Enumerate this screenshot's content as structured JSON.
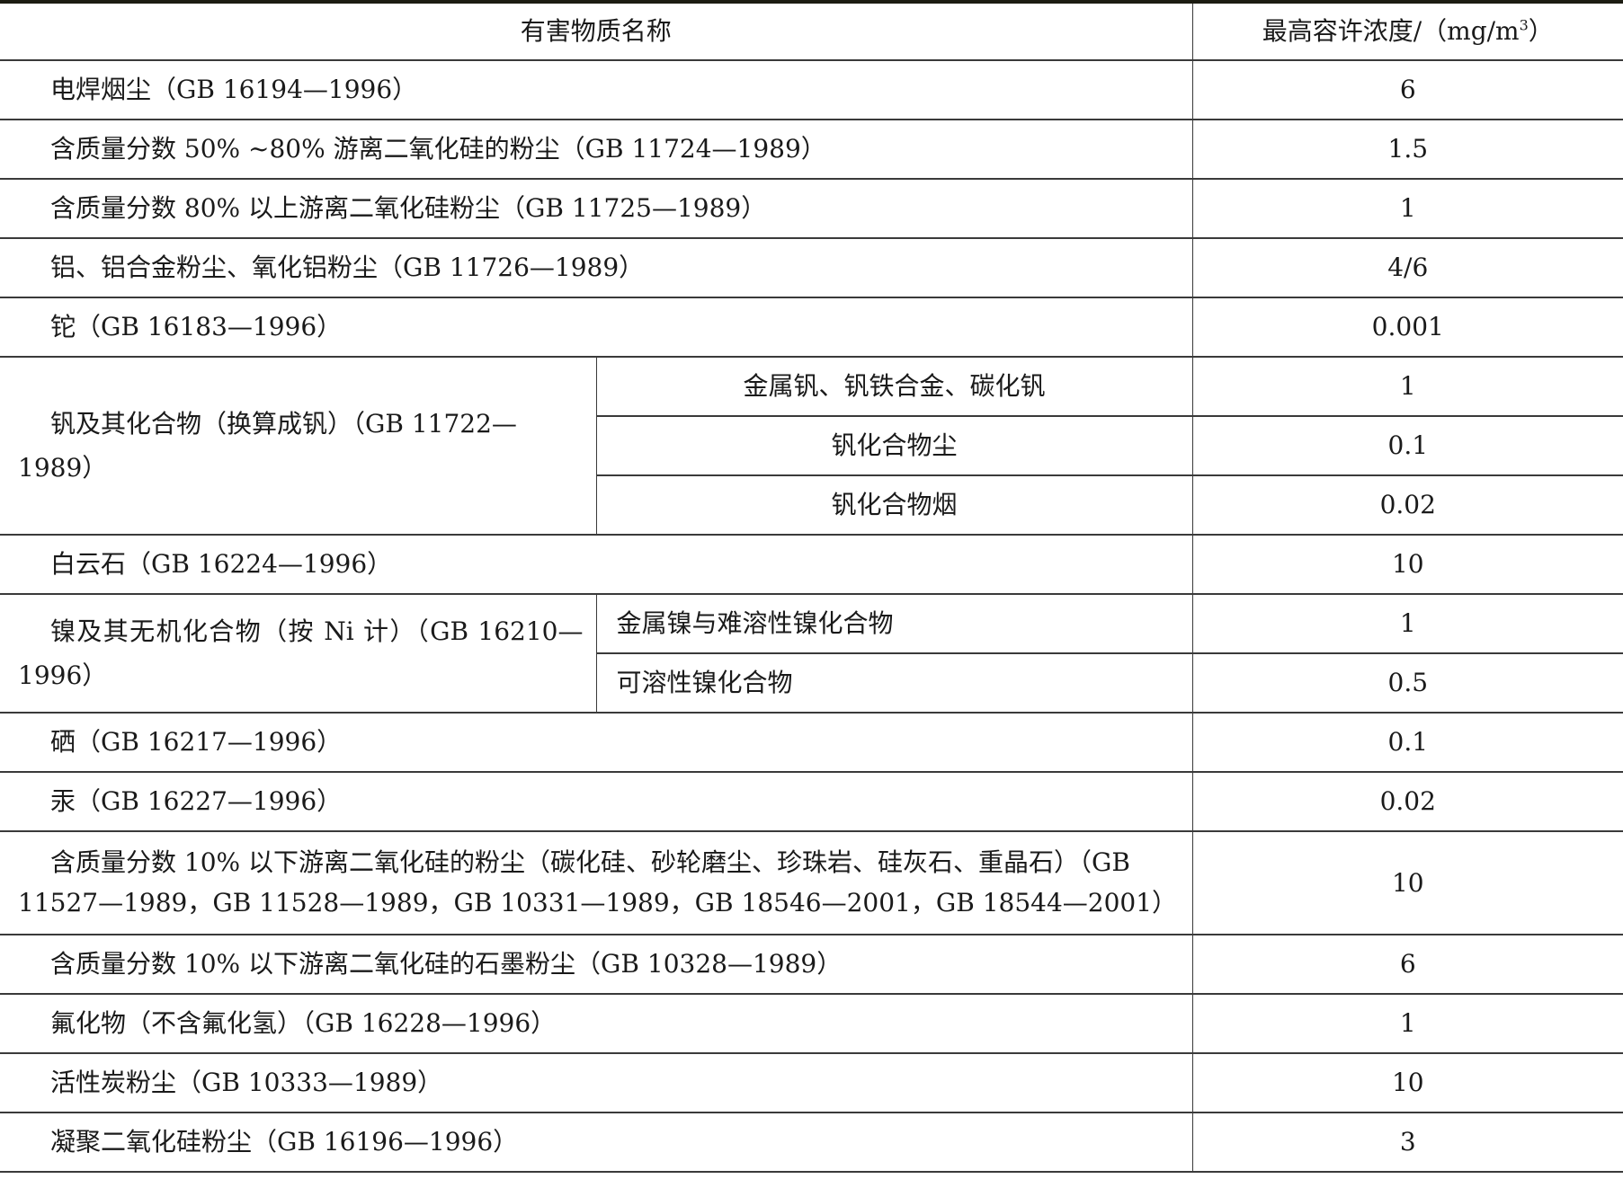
{
  "header": {
    "name": "有害物质名称",
    "value_prefix": "最高容许浓度/（mg/m",
    "value_sup": "3",
    "value_suffix": "）"
  },
  "rows": [
    {
      "name": "电焊烟尘（GB 16194—1996）",
      "value": "6"
    },
    {
      "name": "含质量分数 50% ~80% 游离二氧化硅的粉尘（GB 11724—1989）",
      "value": "1.5"
    },
    {
      "name": "含质量分数 80% 以上游离二氧化硅粉尘（GB 11725—1989）",
      "value": "1"
    },
    {
      "name": "铝、铝合金粉尘、氧化铝粉尘（GB 11726—1989）",
      "value": "4/6"
    },
    {
      "name": "铊（GB 16183—1996）",
      "value": "0.001"
    }
  ],
  "vanadium": {
    "name": "钒及其化合物（换算成钒）（GB 11722—1989）",
    "subs": [
      {
        "name": "金属钒、钒铁合金、碳化钒",
        "value": "1"
      },
      {
        "name": "钒化合物尘",
        "value": "0.1"
      },
      {
        "name": "钒化合物烟",
        "value": "0.02"
      }
    ]
  },
  "dolomite": {
    "name": "白云石（GB 16224—1996）",
    "value": "10"
  },
  "nickel": {
    "name": "镍及其无机化合物（按 Ni 计）（GB 16210—1996）",
    "subs": [
      {
        "name": "金属镍与难溶性镍化合物",
        "value": "1"
      },
      {
        "name": "可溶性镍化合物",
        "value": "0.5"
      }
    ]
  },
  "rows2": [
    {
      "name": "硒（GB 16217—1996）",
      "value": "0.1"
    },
    {
      "name": "汞（GB 16227—1996）",
      "value": "0.02"
    }
  ],
  "silica10": {
    "name": "含质量分数 10% 以下游离二氧化硅的粉尘（碳化硅、砂轮磨尘、珍珠岩、硅灰石、重晶石）（GB 11527—1989，GB 11528—1989，GB 10331—1989，GB 18546—2001，GB 18544—2001）",
    "value": "10"
  },
  "rows3": [
    {
      "name": "含质量分数 10% 以下游离二氧化硅的石墨粉尘（GB 10328—1989）",
      "value": "6"
    },
    {
      "name": "氟化物（不含氟化氢）（GB 16228—1996）",
      "value": "1"
    },
    {
      "name": "活性炭粉尘（GB 10333—1989）",
      "value": "10"
    },
    {
      "name": "凝聚二氧化硅粉尘（GB 16196—1996）",
      "value": "3"
    }
  ]
}
